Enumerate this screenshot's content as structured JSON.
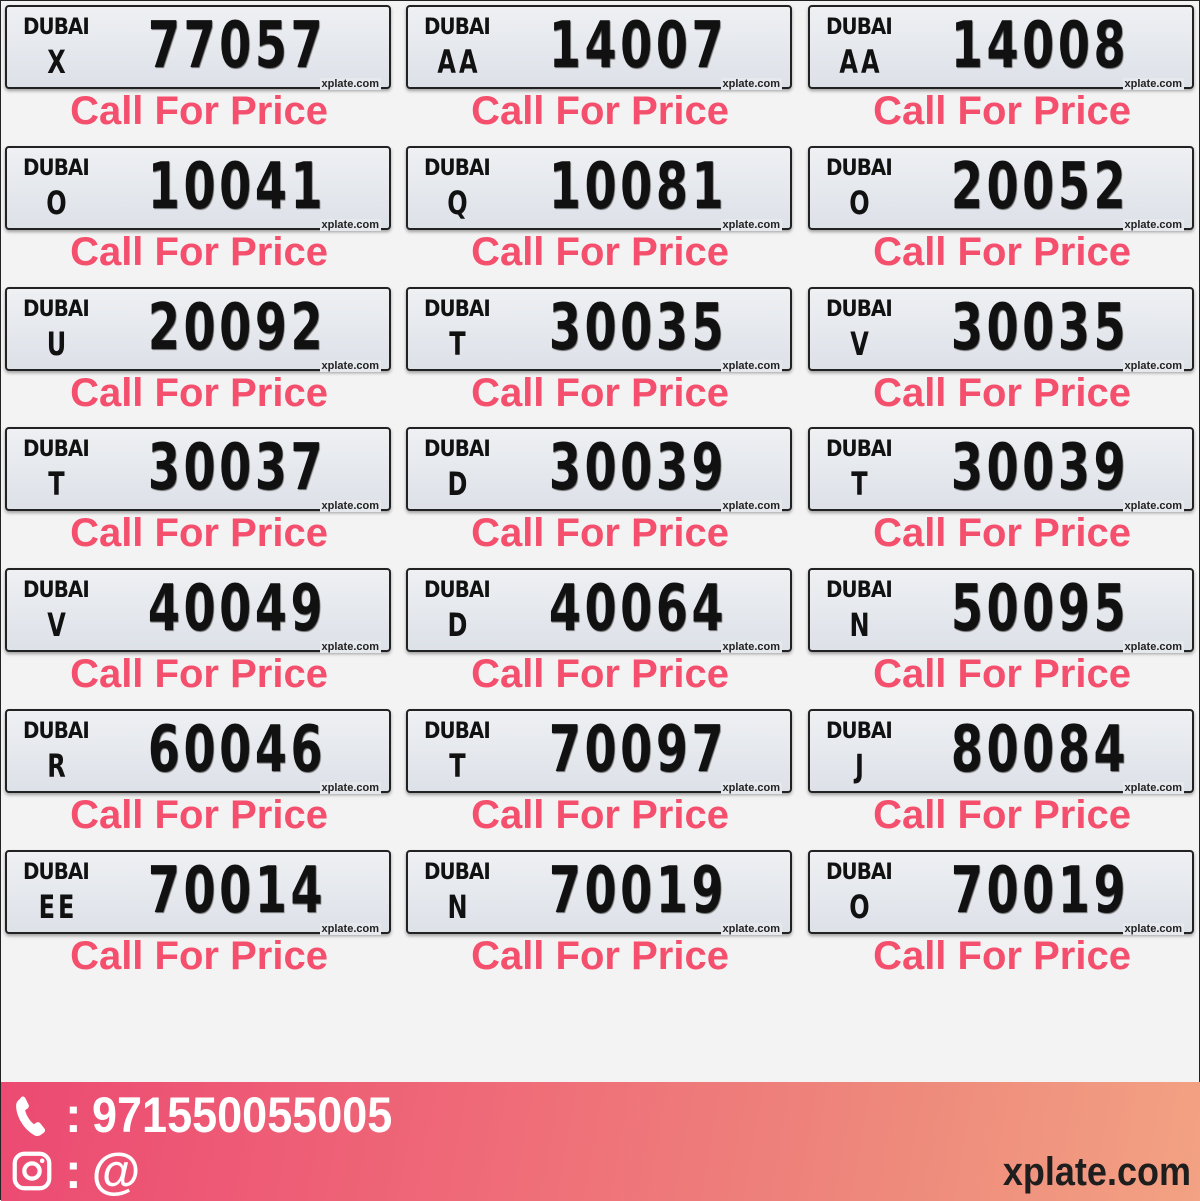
{
  "plates": [
    {
      "emirate": "DUBAI",
      "code": "X",
      "number": "77057",
      "watermark": "xplate.com",
      "price": "Call For Price"
    },
    {
      "emirate": "DUBAI",
      "code": "AA",
      "number": "14007",
      "watermark": "xplate.com",
      "price": "Call For Price"
    },
    {
      "emirate": "DUBAI",
      "code": "AA",
      "number": "14008",
      "watermark": "xplate.com",
      "price": "Call For Price"
    },
    {
      "emirate": "DUBAI",
      "code": "O",
      "number": "10041",
      "watermark": "xplate.com",
      "price": "Call For Price"
    },
    {
      "emirate": "DUBAI",
      "code": "Q",
      "number": "10081",
      "watermark": "xplate.com",
      "price": "Call For Price"
    },
    {
      "emirate": "DUBAI",
      "code": "O",
      "number": "20052",
      "watermark": "xplate.com",
      "price": "Call For Price"
    },
    {
      "emirate": "DUBAI",
      "code": "U",
      "number": "20092",
      "watermark": "xplate.com",
      "price": "Call For Price"
    },
    {
      "emirate": "DUBAI",
      "code": "T",
      "number": "30035",
      "watermark": "xplate.com",
      "price": "Call For Price"
    },
    {
      "emirate": "DUBAI",
      "code": "V",
      "number": "30035",
      "watermark": "xplate.com",
      "price": "Call For Price"
    },
    {
      "emirate": "DUBAI",
      "code": "T",
      "number": "30037",
      "watermark": "xplate.com",
      "price": "Call For Price"
    },
    {
      "emirate": "DUBAI",
      "code": "D",
      "number": "30039",
      "watermark": "xplate.com",
      "price": "Call For Price"
    },
    {
      "emirate": "DUBAI",
      "code": "T",
      "number": "30039",
      "watermark": "xplate.com",
      "price": "Call For Price"
    },
    {
      "emirate": "DUBAI",
      "code": "V",
      "number": "40049",
      "watermark": "xplate.com",
      "price": "Call For Price"
    },
    {
      "emirate": "DUBAI",
      "code": "D",
      "number": "40064",
      "watermark": "xplate.com",
      "price": "Call For Price"
    },
    {
      "emirate": "DUBAI",
      "code": "N",
      "number": "50095",
      "watermark": "xplate.com",
      "price": "Call For Price"
    },
    {
      "emirate": "DUBAI",
      "code": "R",
      "number": "60046",
      "watermark": "xplate.com",
      "price": "Call For Price"
    },
    {
      "emirate": "DUBAI",
      "code": "T",
      "number": "70097",
      "watermark": "xplate.com",
      "price": "Call For Price"
    },
    {
      "emirate": "DUBAI",
      "code": "J",
      "number": "80084",
      "watermark": "xplate.com",
      "price": "Call For Price"
    },
    {
      "emirate": "DUBAI",
      "code": "EE",
      "number": "70014",
      "watermark": "xplate.com",
      "price": "Call For Price"
    },
    {
      "emirate": "DUBAI",
      "code": "N",
      "number": "70019",
      "watermark": "xplate.com",
      "price": "Call For Price"
    },
    {
      "emirate": "DUBAI",
      "code": "O",
      "number": "70019",
      "watermark": "xplate.com",
      "price": "Call For Price"
    }
  ],
  "footer": {
    "phone_icon": "phone-icon",
    "phone_sep": ":",
    "phone": "971550055005",
    "instagram_icon": "instagram-icon",
    "instagram_sep": ":",
    "instagram": "@",
    "site": "xplate.com"
  },
  "colors": {
    "price": "#f4506e",
    "footer_start": "#ec4a72",
    "footer_end": "#f3a283"
  }
}
